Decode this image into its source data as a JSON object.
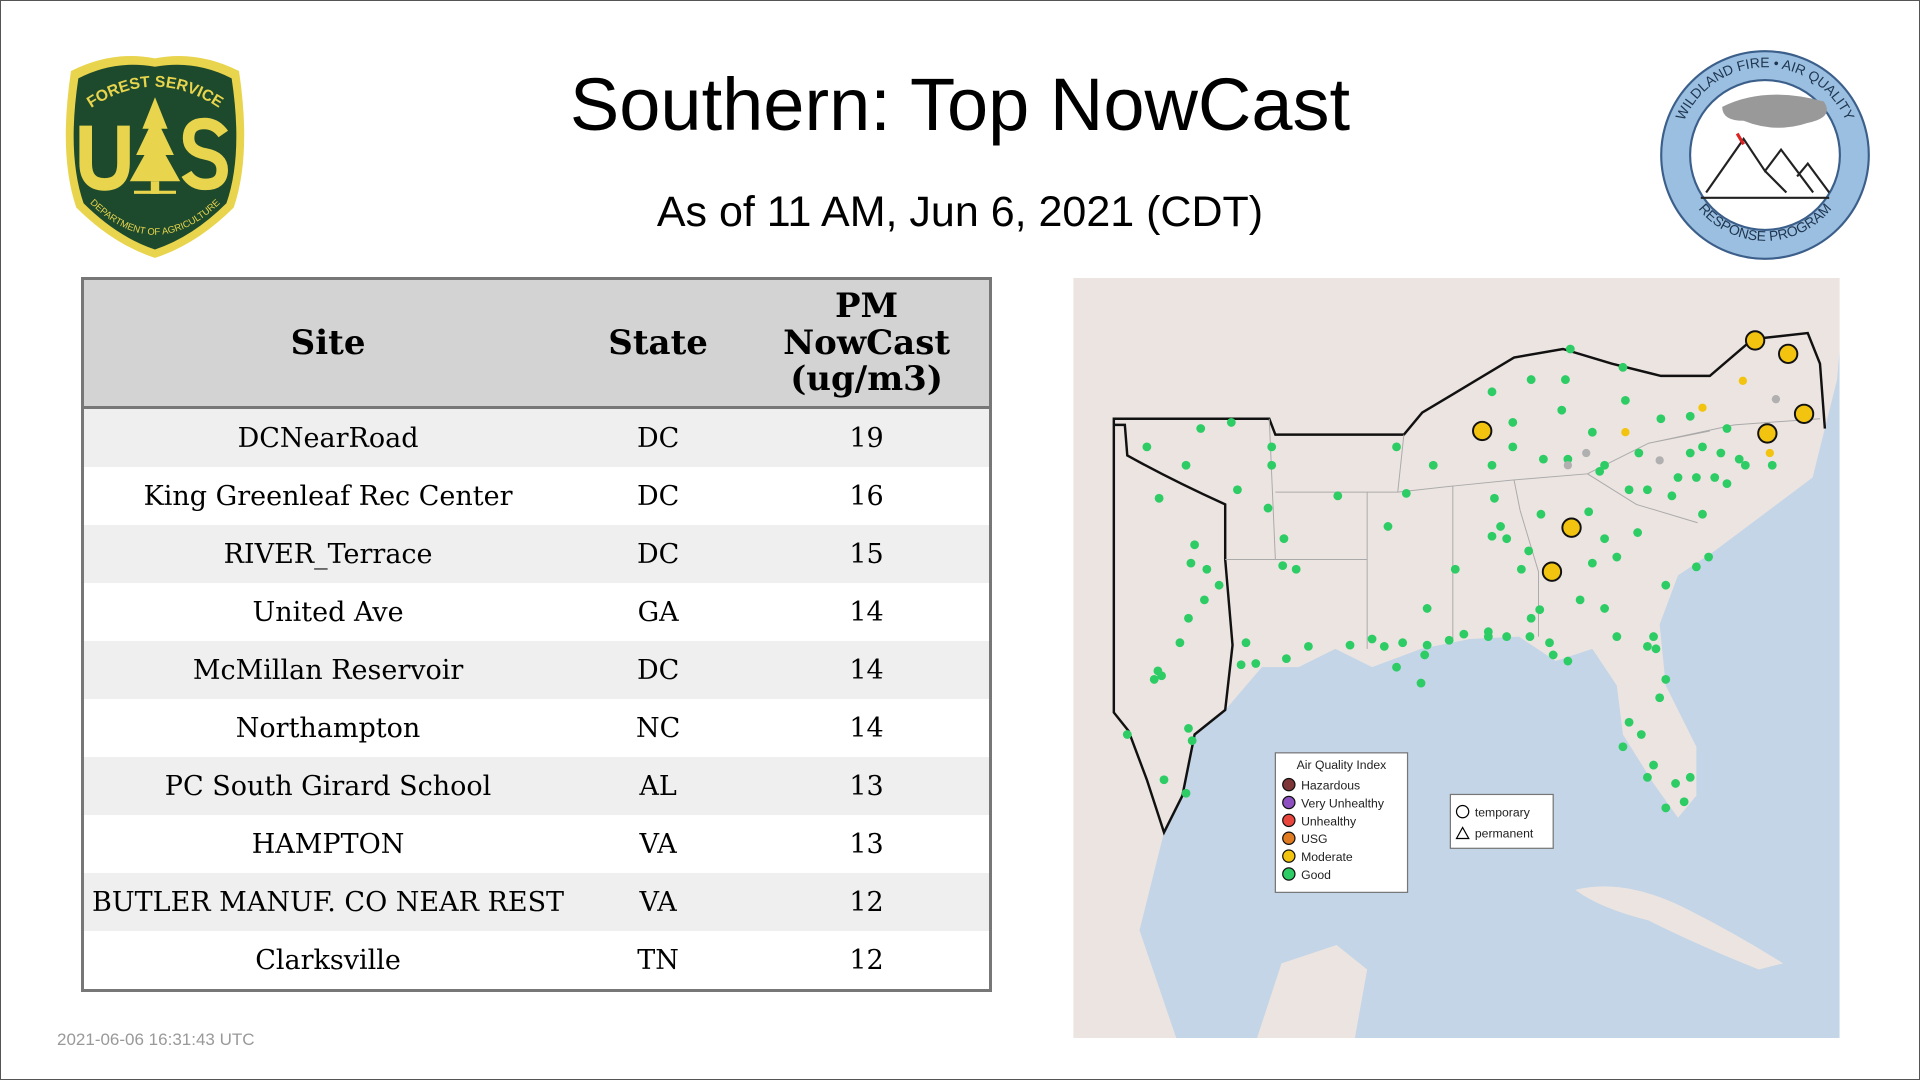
{
  "header": {
    "title": "Southern: Top NowCast",
    "subtitle": "As of 11 AM, Jun  6, 2021 (CDT)"
  },
  "logos": {
    "left": {
      "top_text": "FOREST SERVICE",
      "letters": "U S",
      "bottom_text": "DEPARTMENT OF AGRICULTURE"
    },
    "right": {
      "top_text": "WILDLAND FIRE • AIR QUALITY",
      "bottom_text": "RESPONSE PROGRAM"
    }
  },
  "table": {
    "columns": [
      "Site",
      "State",
      "PM NowCast (ug/m3)"
    ],
    "header_lines": {
      "c3": [
        "PM",
        "NowCast",
        "(ug/m3)"
      ]
    },
    "rows": [
      {
        "site": "DCNearRoad",
        "state": "DC",
        "value": "19"
      },
      {
        "site": "King Greenleaf Rec Center",
        "state": "DC",
        "value": "16"
      },
      {
        "site": "RIVER_Terrace",
        "state": "DC",
        "value": "15"
      },
      {
        "site": "United Ave",
        "state": "GA",
        "value": "14"
      },
      {
        "site": "McMillan Reservoir",
        "state": "DC",
        "value": "14"
      },
      {
        "site": "Northampton",
        "state": "NC",
        "value": "14"
      },
      {
        "site": "PC South Girard School",
        "state": "AL",
        "value": "13"
      },
      {
        "site": "HAMPTON",
        "state": "VA",
        "value": "13"
      },
      {
        "site": "BUTLER MANUF. CO NEAR REST",
        "state": "VA",
        "value": "12"
      },
      {
        "site": "Clarksville",
        "state": "TN",
        "value": "12"
      }
    ]
  },
  "map": {
    "legend": {
      "title": "Air Quality Index",
      "items": [
        {
          "label": "Hazardous",
          "color": "#7e3535"
        },
        {
          "label": "Very Unhealthy",
          "color": "#8e4fc0"
        },
        {
          "label": "Unhealthy",
          "color": "#e8453c"
        },
        {
          "label": "USG",
          "color": "#e07b22"
        },
        {
          "label": "Moderate",
          "color": "#f2c40f"
        },
        {
          "label": "Good",
          "color": "#2ecc65"
        }
      ]
    },
    "shape_legend": {
      "temporary": "temporary",
      "permanent": "permanent"
    },
    "colors": {
      "water": "#c3d5e6",
      "land": "#ece4e1",
      "good": "#2ecc65",
      "moderate": "#f2c40f",
      "nodata": "#b0b0b0"
    }
  },
  "footer": {
    "timestamp": "2021-06-06 16:31:43 UTC"
  }
}
